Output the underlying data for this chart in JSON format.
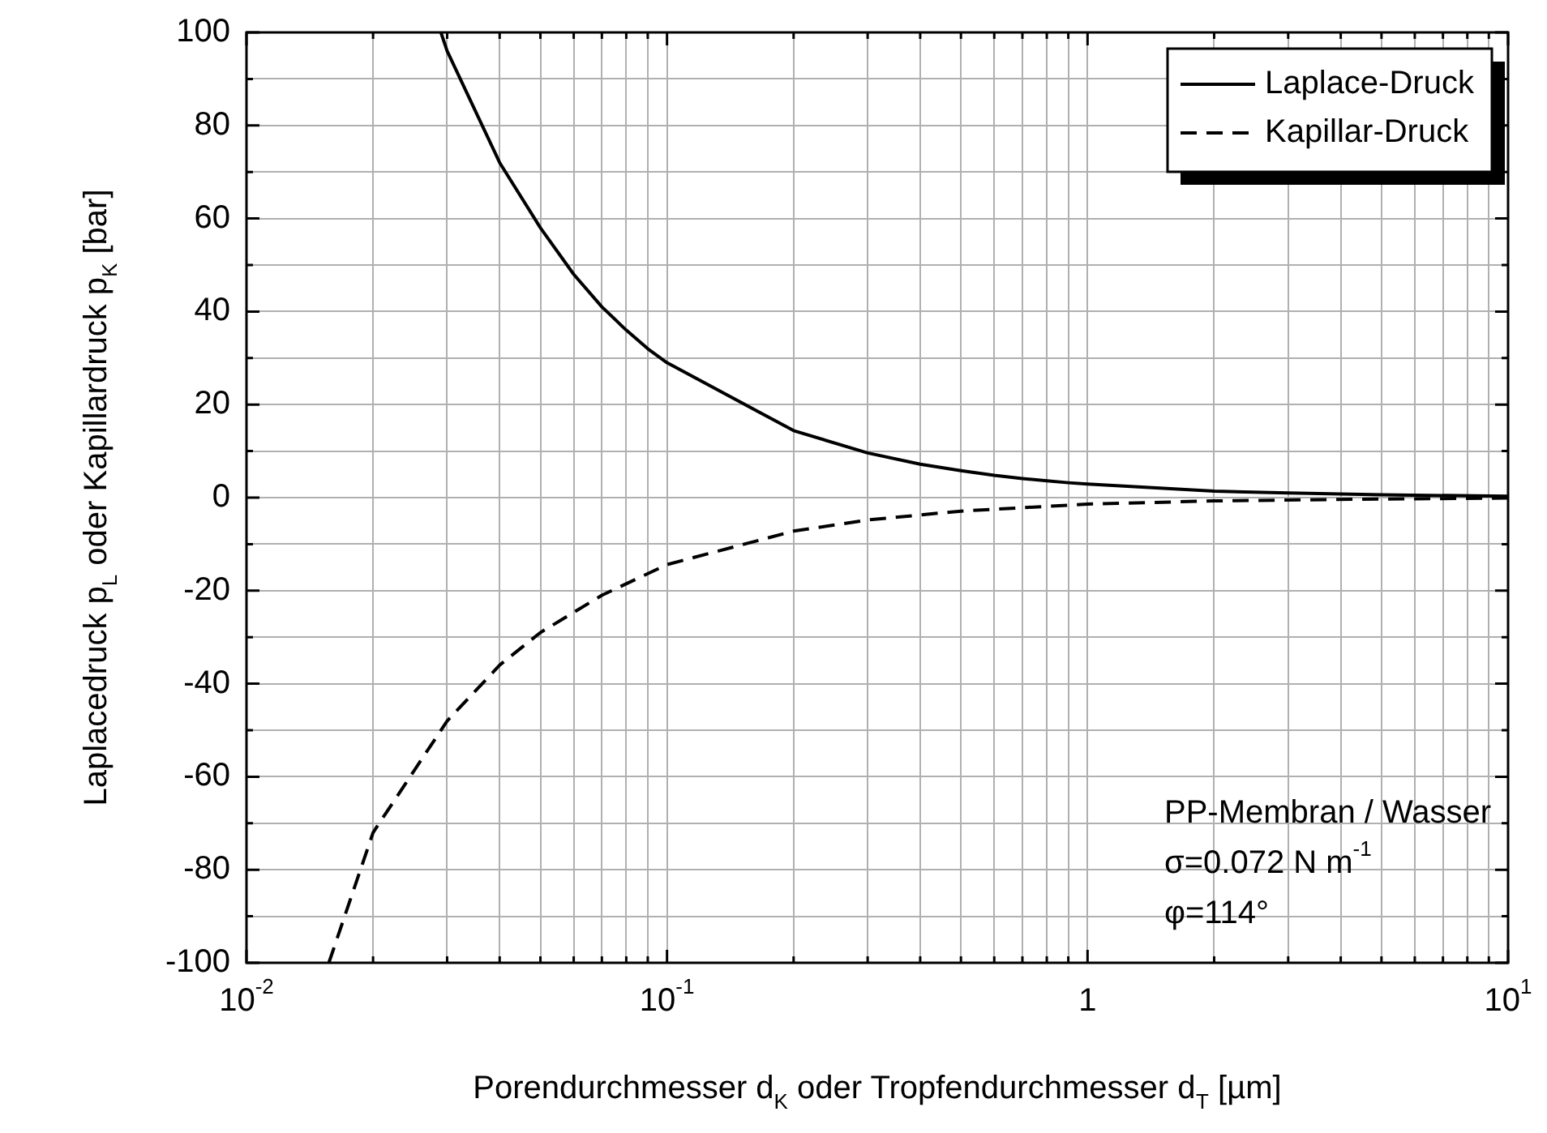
{
  "chart_data": {
    "type": "line",
    "xlabel": "Porendurchmesser d$_{K}$ oder Tropfendurchmesser d$_{T}$ [µm]",
    "ylabel": "Laplacedruck p$_{L}$ oder Kapillardruck p$_{K}$ [bar]",
    "log": "x",
    "grid": true,
    "legend": "top right",
    "xlim": [
      0.01,
      10
    ],
    "ylim": [
      -100,
      100
    ],
    "xticks": [
      {
        "value": 0.01,
        "label": "10$^{-2}$"
      },
      {
        "value": 0.02,
        "label": null
      },
      {
        "value": 0.03,
        "label": null
      },
      {
        "value": 0.04,
        "label": null
      },
      {
        "value": 0.05,
        "label": null
      },
      {
        "value": 0.06,
        "label": null
      },
      {
        "value": 0.07,
        "label": null
      },
      {
        "value": 0.08,
        "label": null
      },
      {
        "value": 0.09,
        "label": null
      },
      {
        "value": 0.1,
        "label": "10$^{-1}$"
      },
      {
        "value": 0.2,
        "label": null
      },
      {
        "value": 0.3,
        "label": null
      },
      {
        "value": 0.4,
        "label": null
      },
      {
        "value": 0.5,
        "label": null
      },
      {
        "value": 0.6,
        "label": null
      },
      {
        "value": 0.7,
        "label": null
      },
      {
        "value": 0.8,
        "label": null
      },
      {
        "value": 0.9,
        "label": null
      },
      1,
      {
        "value": 2,
        "label": null
      },
      {
        "value": 3,
        "label": null
      },
      {
        "value": 4,
        "label": null
      },
      {
        "value": 5,
        "label": null
      },
      {
        "value": 6,
        "label": null
      },
      {
        "value": 7,
        "label": null
      },
      {
        "value": 8,
        "label": null
      },
      {
        "value": 9,
        "label": null
      },
      {
        "value": 10,
        "label": "10$^{1}$"
      }
    ],
    "yticks": [
      -100,
      {
        "value": -90,
        "label": null
      },
      -80,
      {
        "value": -70,
        "label": null
      },
      -60,
      {
        "value": -50,
        "label": null
      },
      -40,
      {
        "value": -30,
        "label": null
      },
      -20,
      {
        "value": -10,
        "label": null
      },
      0,
      {
        "value": 10,
        "label": null
      },
      20,
      {
        "value": 30,
        "label": null
      },
      40,
      {
        "value": 50,
        "label": null
      },
      60,
      {
        "value": 70,
        "label": null
      },
      80,
      {
        "value": 90,
        "label": null
      },
      100
    ],
    "series": [
      {
        "name": "Laplace-Druck",
        "color": "#000000",
        "line_style": "solid",
        "x": [
          0.029,
          0.03,
          0.04,
          0.05,
          0.06,
          0.07,
          0.08,
          0.09,
          0.1,
          0.2,
          0.3,
          0.4,
          0.5,
          0.6,
          0.7,
          0.8,
          0.9,
          1,
          2,
          3,
          5,
          10
        ],
        "values": [
          100,
          96,
          72,
          58,
          48,
          41,
          36,
          32,
          29,
          14.4,
          9.6,
          7.2,
          5.8,
          4.8,
          4.1,
          3.6,
          3.2,
          2.9,
          1.4,
          1,
          0.6,
          0.3
        ]
      },
      {
        "name": "Kapillar-Druck",
        "color": "#000000",
        "line_style": "dashed",
        "x": [
          0.0157,
          0.02,
          0.03,
          0.04,
          0.05,
          0.07,
          0.1,
          0.2,
          0.3,
          0.5,
          1,
          2,
          5,
          10
        ],
        "values": [
          -100,
          -72,
          -48,
          -36,
          -29,
          -21,
          -14.4,
          -7.2,
          -4.8,
          -2.9,
          -1.4,
          -0.7,
          -0.3,
          -0.1
        ]
      }
    ],
    "annotations": [
      "PP-Membran / Wasser",
      "σ=0.072 N m$^{-1}$",
      "φ=114°"
    ]
  }
}
